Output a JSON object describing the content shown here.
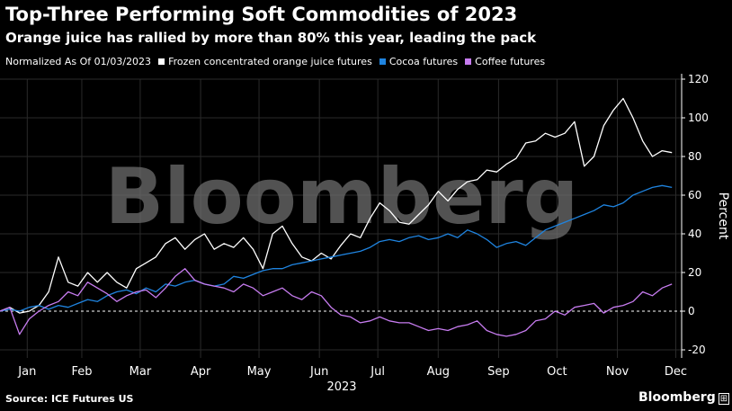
{
  "title": "Top-Three Performing Soft Commodities of 2023",
  "subtitle": "Orange juice has rallied by more than 80% this year, leading the pack",
  "legend": {
    "normalized": "Normalized As Of 01/03/2023",
    "items": [
      "Frozen concentrated orange juice futures",
      "Cocoa futures",
      "Coffee futures"
    ]
  },
  "source": "Source: ICE Futures US",
  "brand": "Bloomberg",
  "watermark": "Bloomberg",
  "colors": {
    "background": "#000000",
    "oj": "#ffffff",
    "cocoa": "#1f84e0",
    "coffee": "#c77cf0",
    "grid": "#2a2a2a",
    "zero": "#ffffff"
  },
  "chart_data": {
    "type": "line",
    "ylabel": "Percent",
    "xlabel": "2023",
    "ylim": [
      -25,
      122
    ],
    "yticks": [
      120,
      100,
      80,
      60,
      40,
      20,
      0,
      -20
    ],
    "xlim": [
      0,
      350
    ],
    "month_labels": [
      "Jan",
      "Feb",
      "Mar",
      "Apr",
      "May",
      "Jun",
      "Jul",
      "Aug",
      "Sep",
      "Oct",
      "Nov",
      "Dec"
    ],
    "month_positions": [
      14,
      42,
      72,
      103,
      133,
      164,
      194,
      225,
      256,
      286,
      317,
      347
    ],
    "grid": true,
    "legend_position": "top-left",
    "series": [
      {
        "name": "Frozen concentrated orange juice futures",
        "x": [
          0,
          5,
          10,
          15,
          20,
          25,
          30,
          35,
          40,
          45,
          50,
          55,
          60,
          65,
          70,
          75,
          80,
          85,
          90,
          95,
          100,
          105,
          110,
          115,
          120,
          125,
          130,
          135,
          140,
          145,
          150,
          155,
          160,
          165,
          170,
          175,
          180,
          185,
          190,
          195,
          200,
          205,
          210,
          215,
          220,
          225,
          230,
          235,
          240,
          245,
          250,
          255,
          260,
          265,
          270,
          275,
          280,
          285,
          290,
          295,
          300,
          305,
          310,
          315,
          320,
          325,
          330,
          335,
          340,
          345
        ],
        "y": [
          0,
          2,
          -1,
          0,
          3,
          10,
          28,
          15,
          13,
          20,
          15,
          20,
          15,
          12,
          22,
          25,
          28,
          35,
          38,
          32,
          37,
          40,
          32,
          35,
          33,
          38,
          32,
          22,
          40,
          44,
          35,
          28,
          26,
          30,
          27,
          34,
          40,
          38,
          48,
          56,
          52,
          46,
          45,
          50,
          55,
          62,
          57,
          63,
          67,
          68,
          73,
          72,
          76,
          79,
          87,
          88,
          92,
          90,
          92,
          98,
          75,
          80,
          96,
          104,
          110,
          100,
          88,
          80,
          83,
          82
        ]
      },
      {
        "name": "Cocoa futures",
        "x": [
          0,
          5,
          10,
          15,
          20,
          25,
          30,
          35,
          40,
          45,
          50,
          55,
          60,
          65,
          70,
          75,
          80,
          85,
          90,
          95,
          100,
          105,
          110,
          115,
          120,
          125,
          130,
          135,
          140,
          145,
          150,
          155,
          160,
          165,
          170,
          175,
          180,
          185,
          190,
          195,
          200,
          205,
          210,
          215,
          220,
          225,
          230,
          235,
          240,
          245,
          250,
          255,
          260,
          265,
          270,
          275,
          280,
          285,
          290,
          295,
          300,
          305,
          310,
          315,
          320,
          325,
          330,
          335,
          340,
          345
        ],
        "y": [
          0,
          1,
          0,
          2,
          3,
          1,
          3,
          2,
          4,
          6,
          5,
          8,
          10,
          11,
          9,
          12,
          10,
          14,
          13,
          15,
          16,
          14,
          13,
          14,
          18,
          17,
          19,
          21,
          22,
          22,
          24,
          25,
          26,
          27,
          28,
          29,
          30,
          31,
          33,
          36,
          37,
          36,
          38,
          39,
          37,
          38,
          40,
          38,
          42,
          40,
          37,
          33,
          35,
          36,
          34,
          38,
          42,
          44,
          46,
          48,
          50,
          52,
          55,
          54,
          56,
          60,
          62,
          64,
          65,
          64
        ]
      },
      {
        "name": "Coffee futures",
        "x": [
          0,
          5,
          10,
          15,
          20,
          25,
          30,
          35,
          40,
          45,
          50,
          55,
          60,
          65,
          70,
          75,
          80,
          85,
          90,
          95,
          100,
          105,
          110,
          115,
          120,
          125,
          130,
          135,
          140,
          145,
          150,
          155,
          160,
          165,
          170,
          175,
          180,
          185,
          190,
          195,
          200,
          205,
          210,
          215,
          220,
          225,
          230,
          235,
          240,
          245,
          250,
          255,
          260,
          265,
          270,
          275,
          280,
          285,
          290,
          295,
          300,
          305,
          310,
          315,
          320,
          325,
          330,
          335,
          340,
          345
        ],
        "y": [
          0,
          2,
          -12,
          -4,
          0,
          3,
          5,
          10,
          8,
          15,
          12,
          9,
          5,
          8,
          10,
          11,
          7,
          12,
          18,
          22,
          16,
          14,
          13,
          12,
          10,
          14,
          12,
          8,
          10,
          12,
          8,
          6,
          10,
          8,
          2,
          -2,
          -3,
          -6,
          -5,
          -3,
          -5,
          -6,
          -6,
          -8,
          -10,
          -9,
          -10,
          -8,
          -7,
          -5,
          -10,
          -12,
          -13,
          -12,
          -10,
          -5,
          -4,
          0,
          -2,
          2,
          3,
          4,
          -1,
          2,
          3,
          5,
          10,
          8,
          12,
          14
        ]
      }
    ]
  }
}
